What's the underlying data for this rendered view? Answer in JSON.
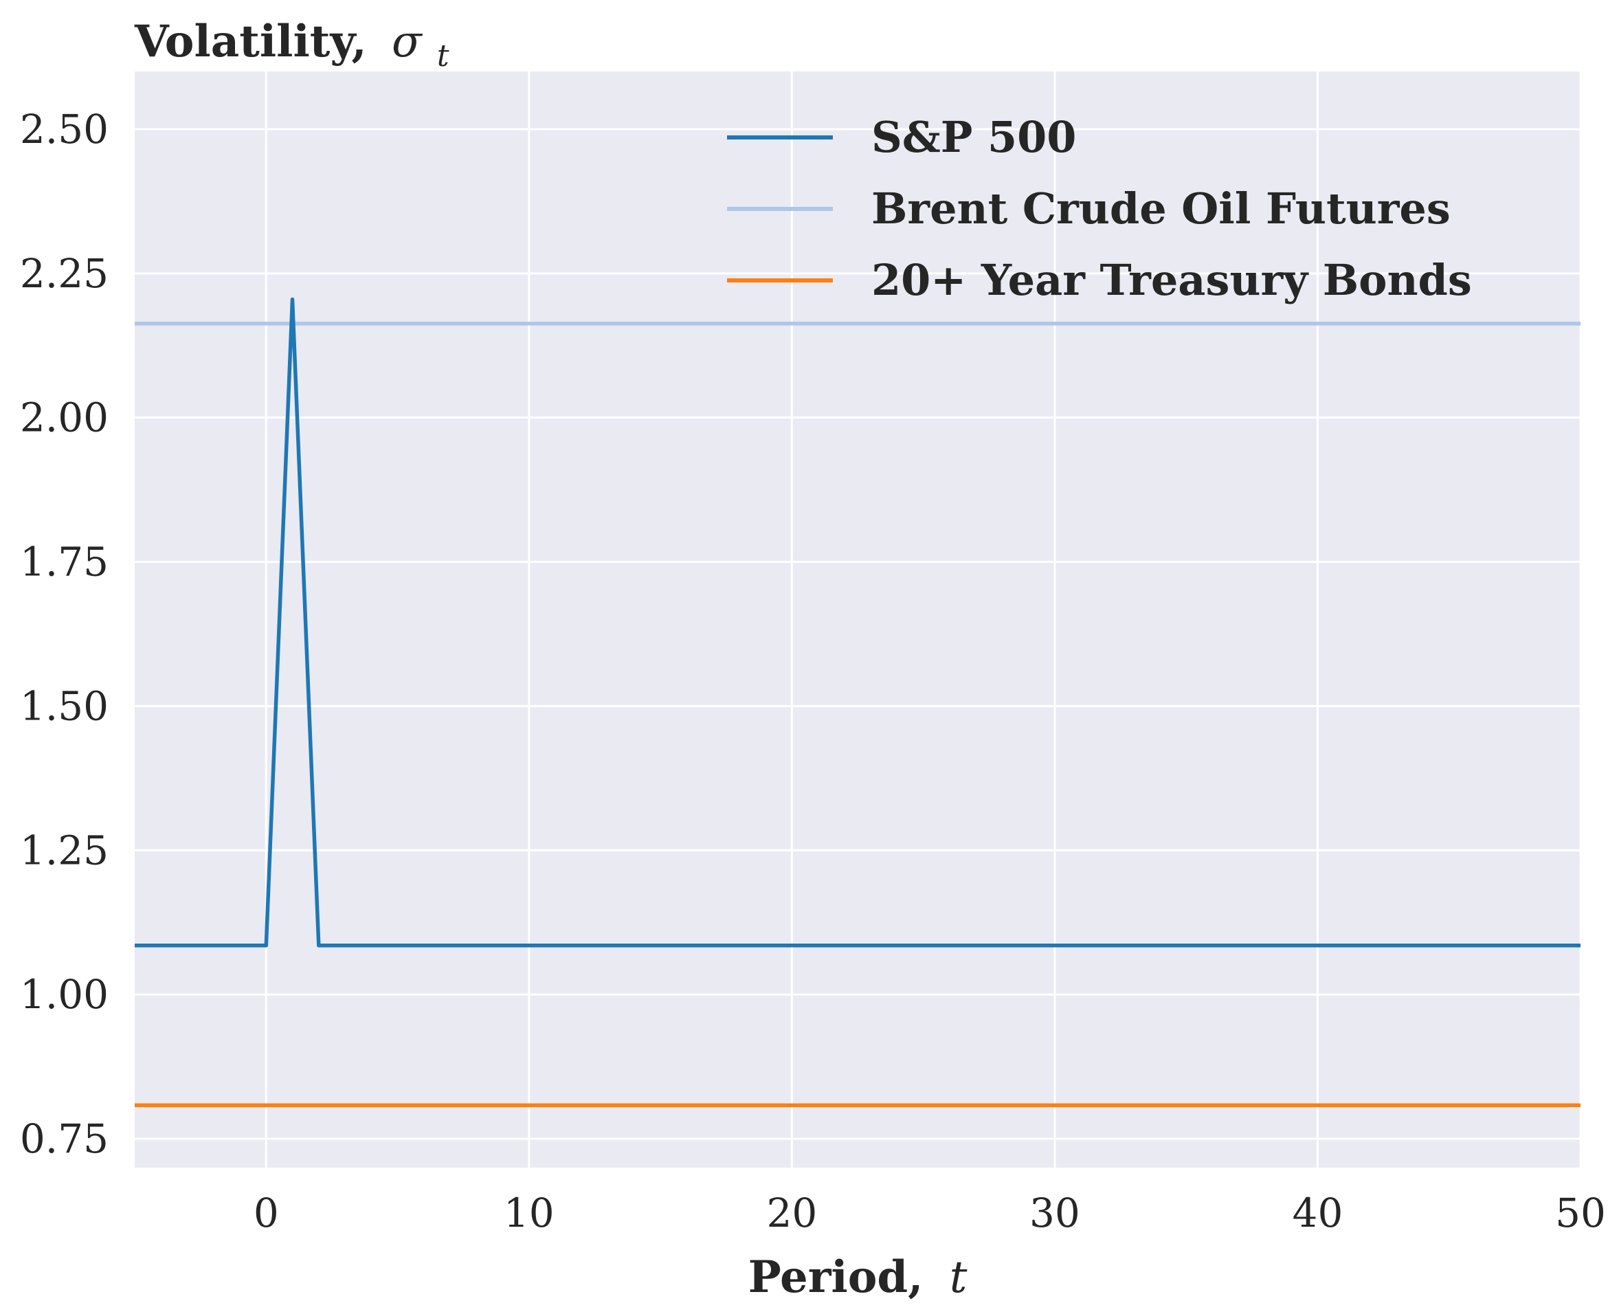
{
  "chart_data": {
    "type": "line",
    "title": "Volatility,",
    "title_symbol": "σ",
    "title_subscript": "t",
    "xlabel": "Period,",
    "xlabel_symbol": "t",
    "ylabel": "",
    "xlim": [
      -5,
      50
    ],
    "ylim": [
      0.7,
      2.6
    ],
    "xticks": [
      0,
      10,
      20,
      30,
      40,
      50
    ],
    "yticks": [
      0.75,
      1.0,
      1.25,
      1.5,
      1.75,
      2.0,
      2.25,
      2.5
    ],
    "xtick_labels": [
      "0",
      "10",
      "20",
      "30",
      "40",
      "50"
    ],
    "ytick_labels": [
      "0.75",
      "1.00",
      "1.25",
      "1.50",
      "1.75",
      "2.00",
      "2.25",
      "2.50"
    ],
    "grid": true,
    "legend_position": "top-right",
    "series": [
      {
        "name": "S&P 500",
        "color": "#1f77b4",
        "x": [
          -5,
          0,
          1,
          2,
          50
        ],
        "y": [
          1.085,
          1.085,
          2.205,
          1.085,
          1.085
        ]
      },
      {
        "name": "Brent Crude Oil Futures",
        "color": "#aec7e8",
        "x": [
          -5,
          50
        ],
        "y": [
          2.163,
          2.163
        ]
      },
      {
        "name": "20+ Year Treasury Bonds",
        "color": "#ff7f0e",
        "x": [
          -5,
          50
        ],
        "y": [
          0.808,
          0.808
        ]
      }
    ]
  }
}
